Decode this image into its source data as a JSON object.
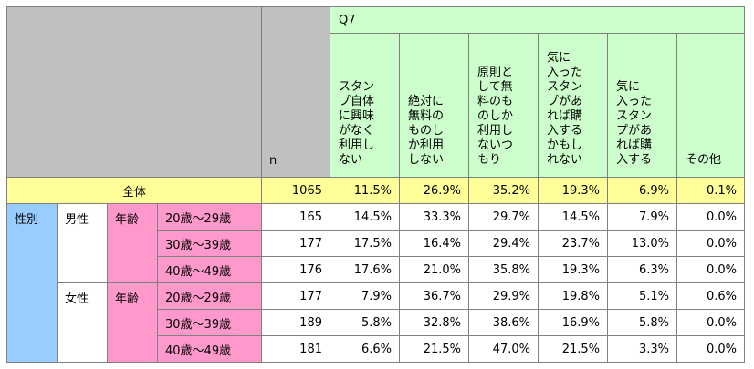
{
  "header": {
    "n_label": "n",
    "question": "Q7",
    "options": [
      "スタン\nプ自体\nに興味\nがなく\n利用し\nない",
      "絶対に\n無料の\nものし\nか利用\nしない",
      "原則と\nして無\n料のも\nのしか\n利用し\nないつ\nもり",
      "気に\n入った\nスタン\nプがあ\nれば購\n入する\nかもし\nれない",
      "気に\n入った\nスタン\nプがあ\nれば購\n入する",
      "その他"
    ]
  },
  "total": {
    "label": "全体",
    "n": "1065",
    "values": [
      "11.5%",
      "26.9%",
      "35.2%",
      "19.3%",
      "6.9%",
      "0.1%"
    ]
  },
  "group_label": "性別",
  "age_label": "年齢",
  "groups": [
    {
      "gender": "男性",
      "rows": [
        {
          "age": "20歳～29歳",
          "n": "165",
          "values": [
            "14.5%",
            "33.3%",
            "29.7%",
            "14.5%",
            "7.9%",
            "0.0%"
          ]
        },
        {
          "age": "30歳～39歳",
          "n": "177",
          "values": [
            "17.5%",
            "16.4%",
            "29.4%",
            "23.7%",
            "13.0%",
            "0.0%"
          ]
        },
        {
          "age": "40歳～49歳",
          "n": "176",
          "values": [
            "17.6%",
            "21.0%",
            "35.8%",
            "19.3%",
            "6.3%",
            "0.0%"
          ]
        }
      ]
    },
    {
      "gender": "女性",
      "rows": [
        {
          "age": "20歳～29歳",
          "n": "177",
          "values": [
            "7.9%",
            "36.7%",
            "29.9%",
            "19.8%",
            "5.1%",
            "0.6%"
          ]
        },
        {
          "age": "30歳～39歳",
          "n": "189",
          "values": [
            "5.8%",
            "32.8%",
            "38.6%",
            "16.9%",
            "5.8%",
            "0.0%"
          ]
        },
        {
          "age": "40歳～49歳",
          "n": "181",
          "values": [
            "6.6%",
            "21.5%",
            "47.0%",
            "21.5%",
            "3.3%",
            "0.0%"
          ]
        }
      ]
    }
  ]
}
